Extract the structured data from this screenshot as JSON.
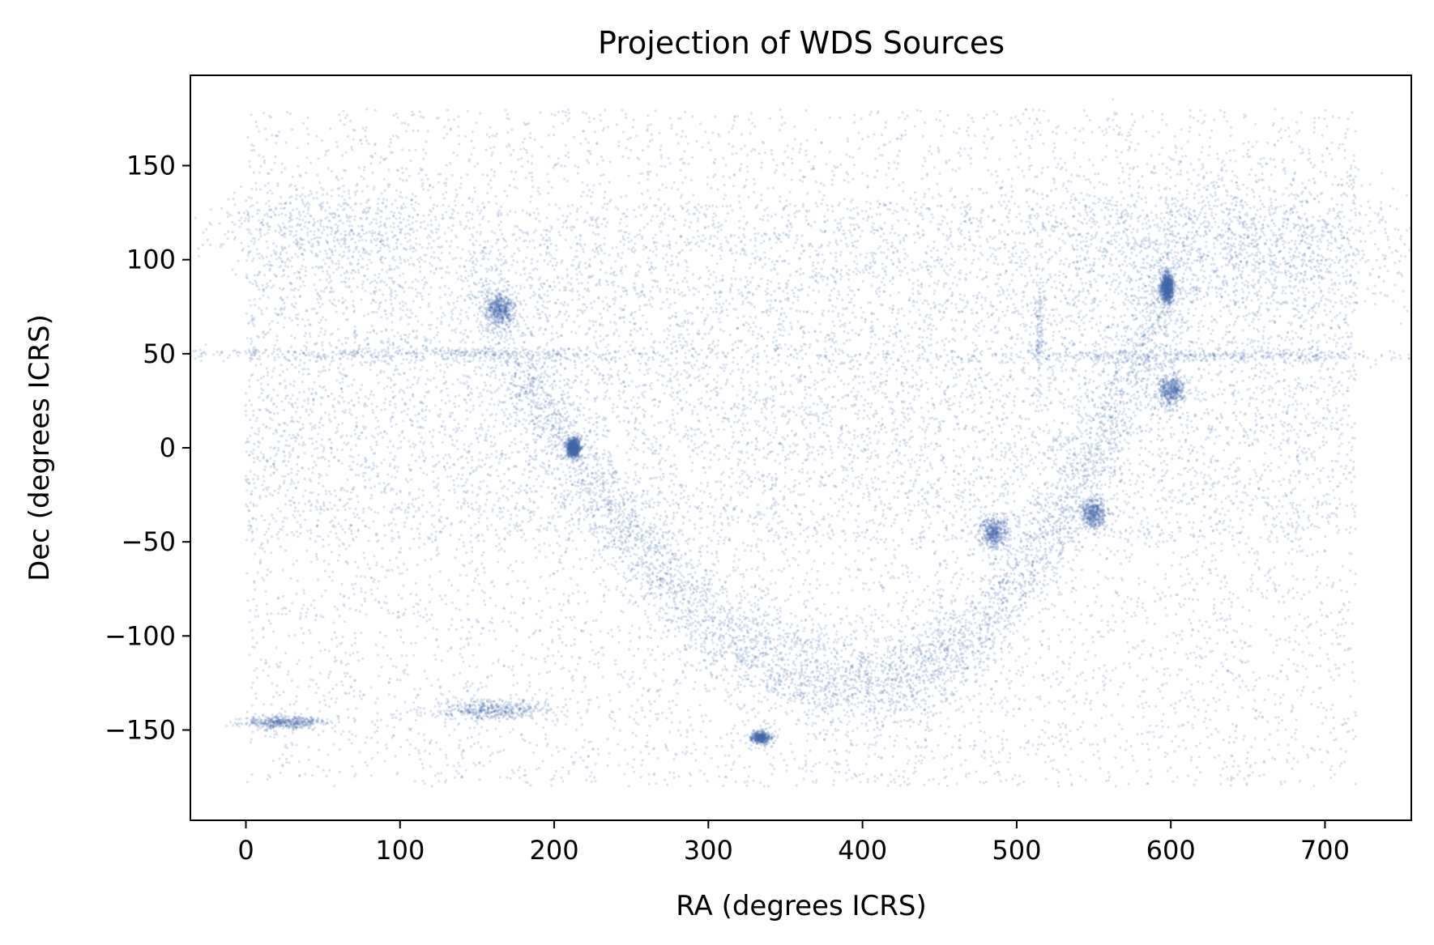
{
  "chart_data": {
    "type": "scatter",
    "title": "Projection of WDS Sources",
    "xlabel": "RA (degrees ICRS)",
    "ylabel": "Dec (degrees ICRS)",
    "xlim": [
      -36,
      756
    ],
    "ylim": [
      -198,
      198
    ],
    "x_ticks": [
      0,
      100,
      200,
      300,
      400,
      500,
      600,
      700
    ],
    "x_tick_labels": [
      "0",
      "100",
      "200",
      "300",
      "400",
      "500",
      "600",
      "700"
    ],
    "y_ticks": [
      150,
      100,
      50,
      0,
      -50,
      -100,
      -150
    ],
    "y_tick_labels": [
      "150",
      "100",
      "50",
      "0",
      "−50",
      "−100",
      "−150"
    ],
    "grid": false,
    "legend": "none",
    "marker_color": "#4169aa",
    "marker_opacity": 0.18,
    "point_count_estimate": "tens of thousands (dense background)",
    "x_range_of_points": [
      0,
      720
    ],
    "y_range_of_points": [
      -180,
      180
    ],
    "background_distribution": "roughly uniform over RA 0–720, Dec −180–180, denser between Dec −50 and 130",
    "features": [
      {
        "name": "dense band (upper-left)",
        "x": [
          0,
          100
        ],
        "y": [
          100,
          130
        ],
        "density": "high"
      },
      {
        "name": "dense band (upper-right)",
        "x": [
          560,
          720
        ],
        "y": [
          80,
          130
        ],
        "density": "high"
      },
      {
        "name": "horizontal streak left",
        "x": [
          10,
          260
        ],
        "y": [
          48,
          52
        ],
        "density": "high"
      },
      {
        "name": "horizontal streak right",
        "x": [
          520,
          720
        ],
        "y": [
          47,
          51
        ],
        "density": "high"
      },
      {
        "name": "galactic-plane arc",
        "x": [
          150,
          600
        ],
        "y": [
          -130,
          90
        ],
        "shape": "U-shaped curve with minimum near (400, -125)",
        "density": "high"
      },
      {
        "name": "cluster",
        "x": [
          595,
          600
        ],
        "y": [
          80,
          90
        ],
        "density": "very high"
      },
      {
        "name": "cluster",
        "x": [
          210,
          215
        ],
        "y": [
          -3,
          3
        ],
        "density": "very high"
      },
      {
        "name": "cluster",
        "x": [
          160,
          170
        ],
        "y": [
          68,
          78
        ],
        "density": "high"
      },
      {
        "name": "cluster",
        "x": [
          595,
          605
        ],
        "y": [
          25,
          35
        ],
        "density": "high"
      },
      {
        "name": "cluster",
        "x": [
          480,
          490
        ],
        "y": [
          -50,
          -40
        ],
        "density": "high"
      },
      {
        "name": "cluster",
        "x": [
          545,
          555
        ],
        "y": [
          -40,
          -30
        ],
        "density": "high"
      },
      {
        "name": "streak lower-left",
        "x": [
          10,
          40
        ],
        "y": [
          -148,
          -144
        ],
        "density": "high"
      },
      {
        "name": "streak lower-left 2",
        "x": [
          135,
          185
        ],
        "y": [
          -142,
          -136
        ],
        "density": "high"
      },
      {
        "name": "small clump",
        "x": [
          330,
          338
        ],
        "y": [
          -156,
          -152
        ],
        "density": "high"
      },
      {
        "name": "vertical streak",
        "x": [
          513,
          517
        ],
        "y": [
          40,
          85
        ],
        "density": "medium"
      }
    ]
  }
}
